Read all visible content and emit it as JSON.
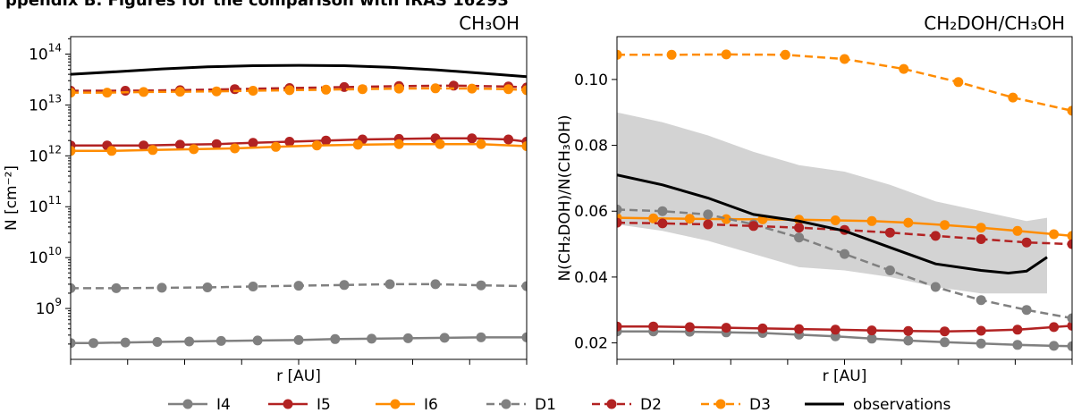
{
  "header_fragment": "ppendix B. Figures for the comparison with IRAS 16293",
  "chart_data": [
    {
      "type": "line",
      "title": "CH₃OH",
      "xlabel": "r [AU]",
      "ylabel": "N [cm⁻²]",
      "yscale": "log",
      "ylim": [
        100000000.0,
        220000000000000.0
      ],
      "xlim": [
        0,
        1
      ],
      "yticks": [
        {
          "value": 1000000000.0,
          "mantissa": "10",
          "exp": "9"
        },
        {
          "value": 10000000000.0,
          "mantissa": "10",
          "exp": "10"
        },
        {
          "value": 100000000000.0,
          "mantissa": "10",
          "exp": "11"
        },
        {
          "value": 1000000000000.0,
          "mantissa": "10",
          "exp": "12"
        },
        {
          "value": 10000000000000.0,
          "mantissa": "10",
          "exp": "13"
        },
        {
          "value": 100000000000000.0,
          "mantissa": "10",
          "exp": "14"
        }
      ],
      "series": [
        {
          "name": "I4",
          "style": "solid",
          "marker": true,
          "color": "#808080",
          "x": [
            0.0,
            0.05,
            0.12,
            0.19,
            0.26,
            0.33,
            0.41,
            0.5,
            0.58,
            0.66,
            0.74,
            0.82,
            0.9,
            1.0
          ],
          "y": [
            210000000.0,
            210000000.0,
            215000000.0,
            220000000.0,
            225000000.0,
            230000000.0,
            235000000.0,
            240000000.0,
            250000000.0,
            255000000.0,
            260000000.0,
            265000000.0,
            270000000.0,
            270000000.0
          ]
        },
        {
          "name": "I5",
          "style": "solid",
          "marker": true,
          "color": "#b22222",
          "x": [
            0.0,
            0.08,
            0.16,
            0.24,
            0.32,
            0.4,
            0.48,
            0.56,
            0.64,
            0.72,
            0.8,
            0.88,
            0.96,
            1.0
          ],
          "y": [
            1600000000000.0,
            1600000000000.0,
            1600000000000.0,
            1650000000000.0,
            1700000000000.0,
            1800000000000.0,
            1900000000000.0,
            2000000000000.0,
            2100000000000.0,
            2150000000000.0,
            2200000000000.0,
            2200000000000.0,
            2100000000000.0,
            1900000000000.0
          ]
        },
        {
          "name": "I6",
          "style": "solid",
          "marker": true,
          "color": "#ff8c00",
          "x": [
            0.0,
            0.09,
            0.18,
            0.27,
            0.36,
            0.45,
            0.54,
            0.63,
            0.72,
            0.81,
            0.9,
            1.0
          ],
          "y": [
            1250000000000.0,
            1250000000000.0,
            1300000000000.0,
            1350000000000.0,
            1400000000000.0,
            1500000000000.0,
            1600000000000.0,
            1650000000000.0,
            1700000000000.0,
            1700000000000.0,
            1700000000000.0,
            1550000000000.0
          ]
        },
        {
          "name": "D1",
          "style": "dashed",
          "marker": true,
          "color": "#808080",
          "x": [
            0.0,
            0.1,
            0.2,
            0.3,
            0.4,
            0.5,
            0.6,
            0.7,
            0.8,
            0.9,
            1.0
          ],
          "y": [
            2500000000.0,
            2500000000.0,
            2550000000.0,
            2600000000.0,
            2700000000.0,
            2800000000.0,
            2900000000.0,
            3000000000.0,
            3000000000.0,
            2850000000.0,
            2750000000.0
          ]
        },
        {
          "name": "D2",
          "style": "dashed",
          "marker": true,
          "color": "#b22222",
          "x": [
            0.0,
            0.12,
            0.24,
            0.36,
            0.48,
            0.6,
            0.72,
            0.84,
            0.96,
            1.0
          ],
          "y": [
            19000000000000.0,
            19000000000000.0,
            19500000000000.0,
            20500000000000.0,
            21500000000000.0,
            22500000000000.0,
            23500000000000.0,
            24000000000000.0,
            23000000000000.0,
            22000000000000.0
          ]
        },
        {
          "name": "D3",
          "style": "dashed",
          "marker": true,
          "color": "#ff8c00",
          "x": [
            0.0,
            0.08,
            0.16,
            0.24,
            0.32,
            0.4,
            0.48,
            0.56,
            0.64,
            0.72,
            0.8,
            0.88,
            0.96,
            1.0
          ],
          "y": [
            17500000000000.0,
            17500000000000.0,
            18000000000000.0,
            18200000000000.0,
            18500000000000.0,
            19000000000000.0,
            19500000000000.0,
            20000000000000.0,
            20500000000000.0,
            21000000000000.0,
            21200000000000.0,
            21000000000000.0,
            20500000000000.0,
            19500000000000.0
          ]
        },
        {
          "name": "observations",
          "style": "solid",
          "marker": false,
          "color": "#000000",
          "x": [
            0.0,
            0.1,
            0.2,
            0.3,
            0.4,
            0.5,
            0.6,
            0.7,
            0.8,
            0.9,
            1.0
          ],
          "y": [
            40000000000000.0,
            45000000000000.0,
            51000000000000.0,
            56000000000000.0,
            59000000000000.0,
            60000000000000.0,
            59000000000000.0,
            55000000000000.0,
            49000000000000.0,
            42000000000000.0,
            36000000000000.0
          ]
        }
      ]
    },
    {
      "type": "line",
      "title": "CH₂DOH/CH₃OH",
      "xlabel": "r [AU]",
      "ylabel": "N(CH₂DOH)/N(CH₃OH)",
      "yscale": "linear",
      "ylim": [
        0.015,
        0.113
      ],
      "xlim": [
        0,
        1
      ],
      "yticks": [
        {
          "value": 0.02,
          "label": "0.02"
        },
        {
          "value": 0.04,
          "label": "0.04"
        },
        {
          "value": 0.06,
          "label": "0.06"
        },
        {
          "value": 0.08,
          "label": "0.08"
        },
        {
          "value": 0.1,
          "label": "0.10"
        }
      ],
      "band": {
        "name": "observations uncertainty",
        "color": "#d3d3d3",
        "x": [
          0.0,
          0.1,
          0.2,
          0.3,
          0.4,
          0.5,
          0.6,
          0.7,
          0.8,
          0.9,
          0.945
        ],
        "upper": [
          0.09,
          0.087,
          0.083,
          0.078,
          0.074,
          0.072,
          0.068,
          0.063,
          0.06,
          0.057,
          0.058
        ],
        "lower": [
          0.056,
          0.054,
          0.051,
          0.047,
          0.043,
          0.042,
          0.04,
          0.037,
          0.035,
          0.035,
          0.035
        ]
      },
      "series": [
        {
          "name": "I4",
          "style": "solid",
          "marker": true,
          "color": "#808080",
          "x": [
            0.0,
            0.08,
            0.16,
            0.24,
            0.32,
            0.4,
            0.48,
            0.56,
            0.64,
            0.72,
            0.8,
            0.88,
            0.96,
            1.0
          ],
          "y": [
            0.0235,
            0.0235,
            0.0234,
            0.0232,
            0.023,
            0.0225,
            0.022,
            0.0213,
            0.0207,
            0.0202,
            0.0198,
            0.0194,
            0.0191,
            0.019
          ]
        },
        {
          "name": "I5",
          "style": "solid",
          "marker": true,
          "color": "#b22222",
          "x": [
            0.0,
            0.08,
            0.16,
            0.24,
            0.32,
            0.4,
            0.48,
            0.56,
            0.64,
            0.72,
            0.8,
            0.88,
            0.96,
            1.0
          ],
          "y": [
            0.025,
            0.025,
            0.0248,
            0.0246,
            0.0244,
            0.0242,
            0.024,
            0.0238,
            0.0236,
            0.0235,
            0.0237,
            0.024,
            0.0248,
            0.0252
          ]
        },
        {
          "name": "I6",
          "style": "solid",
          "marker": true,
          "color": "#ff8c00",
          "x": [
            0.0,
            0.08,
            0.16,
            0.24,
            0.32,
            0.4,
            0.48,
            0.56,
            0.64,
            0.72,
            0.8,
            0.88,
            0.96,
            1.0
          ],
          "y": [
            0.058,
            0.0578,
            0.0577,
            0.0576,
            0.0575,
            0.0574,
            0.0572,
            0.057,
            0.0565,
            0.0558,
            0.055,
            0.054,
            0.053,
            0.0525
          ]
        },
        {
          "name": "D1",
          "style": "dashed",
          "marker": true,
          "color": "#808080",
          "x": [
            0.0,
            0.1,
            0.2,
            0.3,
            0.4,
            0.5,
            0.6,
            0.7,
            0.8,
            0.9,
            1.0
          ],
          "y": [
            0.0605,
            0.06,
            0.059,
            0.056,
            0.052,
            0.047,
            0.042,
            0.037,
            0.033,
            0.03,
            0.0275
          ]
        },
        {
          "name": "D2",
          "style": "dashed",
          "marker": true,
          "color": "#b22222",
          "x": [
            0.0,
            0.1,
            0.2,
            0.3,
            0.4,
            0.5,
            0.6,
            0.7,
            0.8,
            0.9,
            1.0
          ],
          "y": [
            0.0565,
            0.0563,
            0.056,
            0.0555,
            0.055,
            0.0543,
            0.0535,
            0.0525,
            0.0515,
            0.0505,
            0.05
          ]
        },
        {
          "name": "D3",
          "style": "dashed",
          "marker": true,
          "color": "#ff8c00",
          "x": [
            0.0,
            0.12,
            0.24,
            0.37,
            0.5,
            0.63,
            0.75,
            0.87,
            1.0
          ],
          "y": [
            0.1075,
            0.1075,
            0.1076,
            0.1075,
            0.1062,
            0.1032,
            0.0992,
            0.0945,
            0.0905
          ]
        },
        {
          "name": "observations",
          "style": "solid",
          "marker": false,
          "color": "#000000",
          "x": [
            0.0,
            0.1,
            0.2,
            0.3,
            0.4,
            0.5,
            0.6,
            0.7,
            0.8,
            0.86,
            0.9,
            0.945
          ],
          "y": [
            0.071,
            0.068,
            0.064,
            0.059,
            0.057,
            0.054,
            0.049,
            0.044,
            0.042,
            0.0412,
            0.0418,
            0.046
          ]
        }
      ]
    }
  ],
  "legend": [
    {
      "name": "I4",
      "style": "solid",
      "color": "#808080"
    },
    {
      "name": "I5",
      "style": "solid",
      "color": "#b22222"
    },
    {
      "name": "I6",
      "style": "solid",
      "color": "#ff8c00"
    },
    {
      "name": "D1",
      "style": "dashed",
      "color": "#808080"
    },
    {
      "name": "D2",
      "style": "dashed",
      "color": "#b22222"
    },
    {
      "name": "D3",
      "style": "dashed",
      "color": "#ff8c00"
    },
    {
      "name": "observations",
      "style": "solid",
      "color": "#000000",
      "marker": false
    }
  ]
}
